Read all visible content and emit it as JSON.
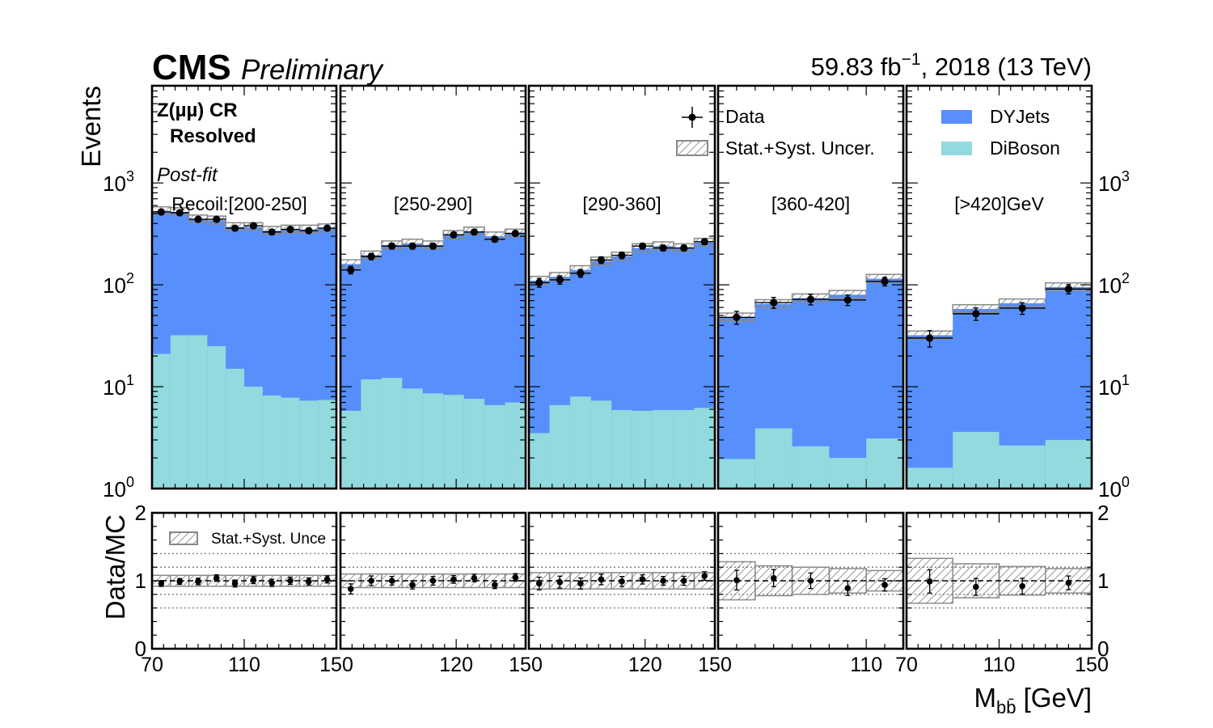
{
  "header": {
    "experiment": "CMS",
    "status": "Preliminary",
    "lumi_text": "59.83 fb",
    "lumi_sup": "−1",
    "lumi_rest": ", 2018 (13 TeV)"
  },
  "labels": {
    "region_line1": "Z(µµ) CR",
    "region_line2": "Resolved",
    "fit_label": "Post-fit",
    "y_main": "Events",
    "y_ratio": "Data/MC",
    "x_axis_main": "M",
    "x_axis_sub": "bb̄",
    "x_axis_unit": " [GeV]"
  },
  "legend": {
    "data": "Data",
    "uncertainty": "Stat.+Syst. Uncer.",
    "dyjets": "DYJets",
    "diboson": "DiBoson",
    "ratio_uncertainty": "Stat.+Syst. Unce"
  },
  "colors": {
    "dyjets": "#5790fc",
    "diboson": "#92dadd",
    "bin_label": "#0000ff",
    "post_fit": "#ff0000"
  },
  "chart_data": {
    "type": "bar",
    "stacked": true,
    "y_scale": "log",
    "ylim": [
      1,
      9000
    ],
    "ratio_ylim": [
      0,
      2
    ],
    "y_ticks": [
      {
        "mantissa": "10",
        "exp": "0"
      },
      {
        "mantissa": "10",
        "exp": "1"
      },
      {
        "mantissa": "10",
        "exp": "2"
      },
      {
        "mantissa": "10",
        "exp": "3"
      }
    ],
    "ratio_ticks": [
      "0",
      "1",
      "2"
    ],
    "series_names": [
      "DYJets",
      "DiBoson"
    ],
    "panels": [
      {
        "bin_label": "Recoil:[200-250]",
        "xlim": [
          70,
          150
        ],
        "x_ticks": [
          {
            "v": 70,
            "label": "70"
          },
          {
            "v": 110,
            "label": "110"
          },
          {
            "v": 150,
            "label": "150"
          }
        ],
        "diboson": [
          21,
          32,
          32,
          25,
          15,
          10,
          8.2,
          7.8,
          7.3,
          7.4
        ],
        "total": [
          530,
          520,
          440,
          430,
          370,
          370,
          340,
          350,
          350,
          360
        ],
        "data": [
          520,
          510,
          440,
          440,
          360,
          380,
          330,
          350,
          340,
          360
        ],
        "ratio": [
          0.96,
          0.99,
          0.99,
          1.04,
          0.96,
          1.01,
          0.97,
          1.0,
          0.99,
          1.02
        ],
        "ratio_unc": [
          0.08,
          0.08,
          0.08,
          0.08,
          0.08,
          0.08,
          0.08,
          0.08,
          0.08,
          0.08
        ]
      },
      {
        "bin_label": "[250-290]",
        "xlim": [
          70,
          150
        ],
        "x_ticks": [
          {
            "v": 70,
            "label": ""
          },
          {
            "v": 120,
            "label": "120"
          },
          {
            "v": 150,
            "label": "150"
          }
        ],
        "diboson": [
          5.8,
          11.8,
          12.2,
          9.6,
          8.6,
          8.3,
          7.6,
          6.6,
          7.0
        ],
        "total": [
          160,
          195,
          245,
          255,
          245,
          310,
          335,
          300,
          320
        ],
        "data": [
          140,
          190,
          240,
          240,
          240,
          310,
          330,
          280,
          320
        ],
        "ratio": [
          0.88,
          1.0,
          1.0,
          0.94,
          1.0,
          1.02,
          1.04,
          0.94,
          1.05
        ],
        "ratio_unc": [
          0.1,
          0.1,
          0.1,
          0.1,
          0.1,
          0.1,
          0.1,
          0.1,
          0.1
        ]
      },
      {
        "bin_label": "[290-360]",
        "xlim": [
          70,
          150
        ],
        "x_ticks": [
          {
            "v": 70,
            "label": ""
          },
          {
            "v": 120,
            "label": "120"
          },
          {
            "v": 150,
            "label": "150"
          }
        ],
        "diboson": [
          3.5,
          6.6,
          8.0,
          7.3,
          5.9,
          5.8,
          5.9,
          5.9,
          6.2
        ],
        "total": [
          110,
          120,
          140,
          170,
          190,
          230,
          240,
          230,
          260
        ],
        "data": [
          105,
          112,
          130,
          175,
          195,
          240,
          230,
          230,
          265
        ],
        "ratio": [
          0.96,
          0.98,
          0.96,
          1.02,
          0.99,
          1.02,
          1.0,
          1.0,
          1.07
        ],
        "ratio_unc": [
          0.12,
          0.12,
          0.12,
          0.12,
          0.12,
          0.12,
          0.12,
          0.12,
          0.12
        ]
      },
      {
        "bin_label": "[360-420]",
        "xlim": [
          70,
          120
        ],
        "x_ticks": [
          {
            "v": 70,
            "label": ""
          },
          {
            "v": 110,
            "label": "110"
          },
          {
            "v": 120,
            "label": ""
          }
        ],
        "diboson": [
          1.95,
          3.9,
          2.6,
          2.0,
          3.1
        ],
        "total": [
          48,
          65,
          74,
          80,
          115
        ],
        "data": [
          48,
          67,
          72,
          71,
          108
        ],
        "ratio": [
          1.01,
          1.04,
          1.0,
          0.89,
          0.94
        ],
        "ratio_unc": [
          0.28,
          0.22,
          0.2,
          0.18,
          0.15
        ]
      },
      {
        "bin_label": "[>420]GeV",
        "xlim": [
          70,
          150
        ],
        "x_ticks": [
          {
            "v": 70,
            "label": "70"
          },
          {
            "v": 110,
            "label": "110"
          },
          {
            "v": 150,
            "label": "150"
          }
        ],
        "diboson": [
          1.6,
          3.6,
          2.65,
          3.0
        ],
        "total": [
          32,
          58,
          66,
          95
        ],
        "data": [
          30,
          52,
          59,
          91
        ],
        "ratio": [
          0.99,
          0.91,
          0.92,
          0.97
        ],
        "ratio_unc": [
          0.33,
          0.25,
          0.21,
          0.18
        ]
      }
    ]
  }
}
